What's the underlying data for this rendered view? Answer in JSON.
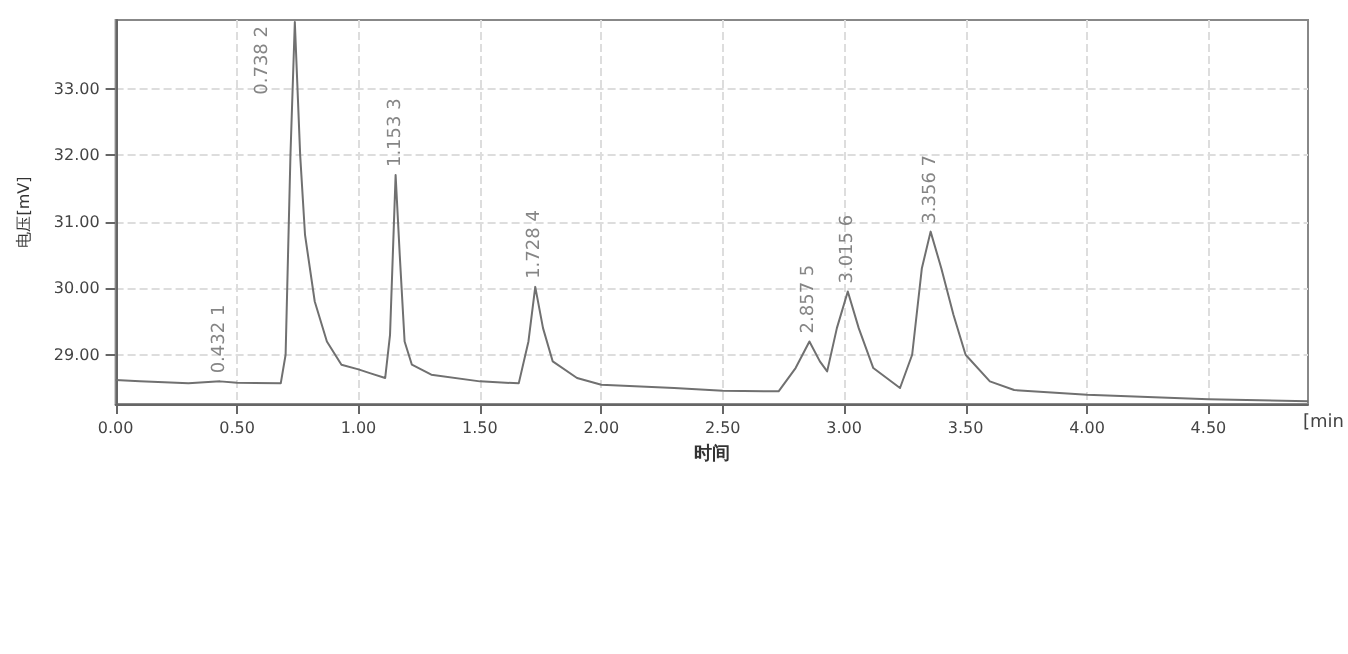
{
  "chart_data": {
    "type": "line",
    "xlabel": "时间",
    "ylabel": "电压[mV]",
    "x": [
      0,
      0.1,
      0.3,
      0.43,
      0.5,
      0.68,
      0.7,
      0.72,
      0.738,
      0.76,
      0.78,
      0.82,
      0.87,
      0.93,
      1.0,
      1.05,
      1.11,
      1.13,
      1.153,
      1.17,
      1.19,
      1.22,
      1.3,
      1.5,
      1.66,
      1.7,
      1.728,
      1.76,
      1.8,
      1.9,
      2.0,
      2.3,
      2.5,
      2.73,
      2.8,
      2.857,
      2.9,
      2.93,
      2.97,
      3.015,
      3.06,
      3.12,
      3.23,
      3.28,
      3.32,
      3.356,
      3.4,
      3.45,
      3.5,
      3.6,
      3.7,
      4.0,
      4.5,
      4.91
    ],
    "series": [
      {
        "color": "#707070",
        "values": [
          28.62,
          28.6,
          28.57,
          28.6,
          28.58,
          28.57,
          29.0,
          32.0,
          34.0,
          32.0,
          30.8,
          29.8,
          29.2,
          28.85,
          28.78,
          28.72,
          28.65,
          29.3,
          31.7,
          30.5,
          29.2,
          28.85,
          28.7,
          28.6,
          28.57,
          29.2,
          30.02,
          29.4,
          28.9,
          28.65,
          28.55,
          28.5,
          28.46,
          28.45,
          28.8,
          29.2,
          28.9,
          28.75,
          29.4,
          29.95,
          29.4,
          28.8,
          28.5,
          29.0,
          30.3,
          30.85,
          30.3,
          29.6,
          29.0,
          28.6,
          28.47,
          28.4,
          28.33,
          28.3
        ]
      }
    ],
    "xlim": [
      0,
      4.91
    ],
    "ylim": [
      28.26,
      34.03
    ],
    "xticks": [
      {
        "value": 0,
        "label": "0.00"
      },
      {
        "value": 0.5,
        "label": "0.50"
      },
      {
        "value": 1,
        "label": "1.00"
      },
      {
        "value": 1.5,
        "label": "1.50"
      },
      {
        "value": 2,
        "label": "2.00"
      },
      {
        "value": 2.5,
        "label": "2.50"
      },
      {
        "value": 3,
        "label": "3.00"
      },
      {
        "value": 3.5,
        "label": "3.50"
      },
      {
        "value": 4,
        "label": "4.00"
      },
      {
        "value": 4.5,
        "label": "4.50"
      }
    ],
    "yticks": [
      {
        "value": 29,
        "label": "29.00"
      },
      {
        "value": 30,
        "label": "30.00"
      },
      {
        "value": 31,
        "label": "31.00"
      },
      {
        "value": 32,
        "label": "32.00"
      },
      {
        "value": 33,
        "label": "33.00"
      }
    ],
    "grid": true,
    "marker": "none",
    "line_style": "solid",
    "annotations": [
      {
        "text": "0.432 1",
        "x": 0.43,
        "y": 28.6
      },
      {
        "text": "0.738 2",
        "x": 0.738,
        "y": 34.0
      },
      {
        "text": "1.153 3",
        "x": 1.153,
        "y": 31.7
      },
      {
        "text": "1.728 4",
        "x": 1.728,
        "y": 30.02
      },
      {
        "text": "2.857 5",
        "x": 2.857,
        "y": 29.2
      },
      {
        "text": "3.015 6",
        "x": 3.015,
        "y": 29.95
      },
      {
        "text": "3.356 7",
        "x": 3.356,
        "y": 30.85
      },
      "[min"
    ]
  }
}
